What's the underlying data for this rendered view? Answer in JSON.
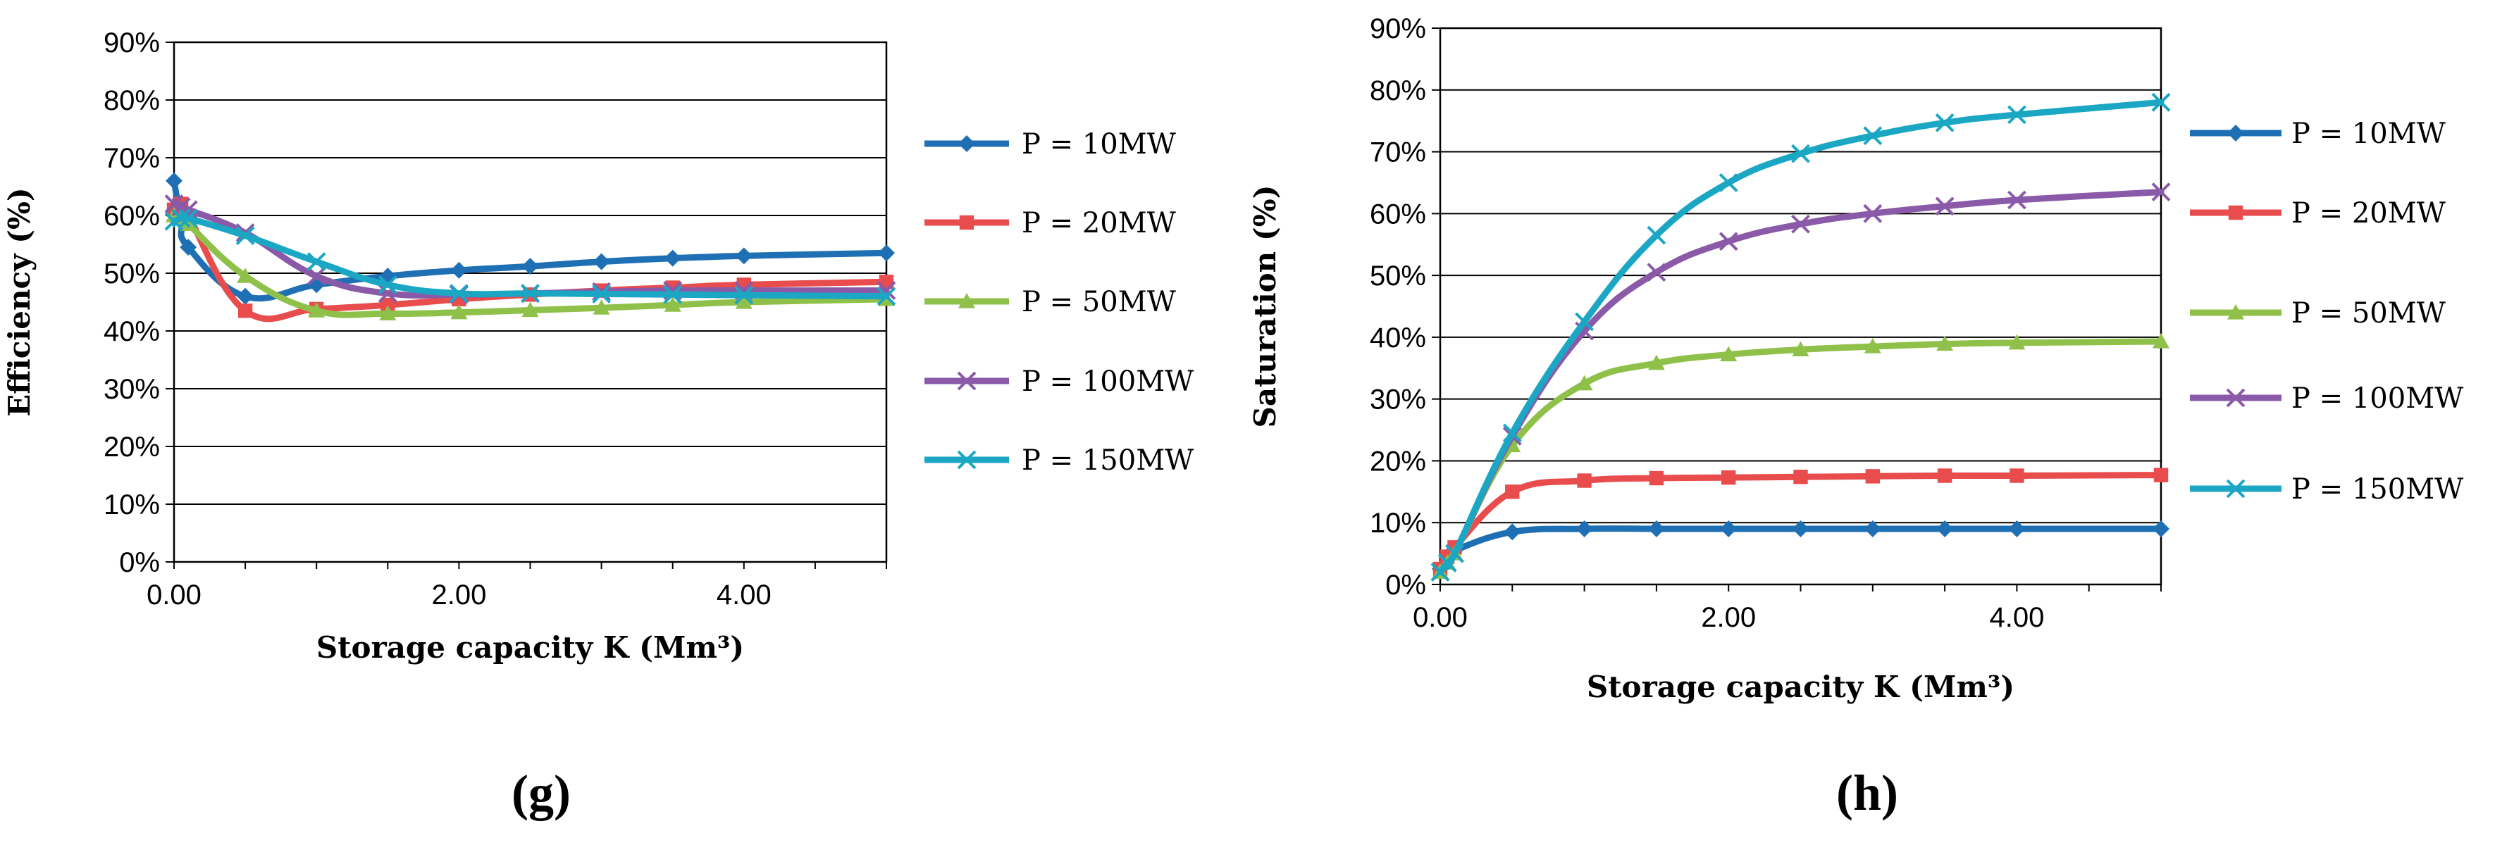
{
  "colors": {
    "P = 10MW": "#1f6fb5",
    "P = 20MW": "#e84c4c",
    "P = 50MW": "#8fc14a",
    "P = 100MW": "#8a5aa8",
    "P = 150MW": "#1ba7c4"
  },
  "markers": {
    "P = 10MW": "diamond",
    "P = 20MW": "square",
    "P = 50MW": "triangle",
    "P = 100MW": "x",
    "P = 150MW": "x"
  },
  "chart_data": [
    {
      "type": "line",
      "panel_label": "(g)",
      "title": "",
      "xlabel": "Storage capacity K (Mm³)",
      "ylabel": "Efficiency (%)",
      "xlim": [
        0,
        5
      ],
      "ylim": [
        0,
        90
      ],
      "xticks": [
        "0.00",
        "2.00",
        "4.00"
      ],
      "xtick_values": [
        0,
        2,
        4
      ],
      "yticks": [
        "0%",
        "10%",
        "20%",
        "30%",
        "40%",
        "50%",
        "60%",
        "70%",
        "80%",
        "90%"
      ],
      "grid": "horizontal",
      "legend": "right",
      "series": [
        {
          "name": "P = 10MW",
          "x": [
            0,
            0.05,
            0.1,
            0.5,
            1,
            1.5,
            2,
            2.5,
            3,
            3.5,
            4,
            5
          ],
          "y": [
            66,
            59,
            54.5,
            46,
            48,
            49.5,
            50.5,
            51.2,
            52,
            52.6,
            53,
            53.5
          ]
        },
        {
          "name": "P = 20MW",
          "x": [
            0,
            0.05,
            0.1,
            0.5,
            1,
            1.5,
            2,
            2.5,
            3,
            3.5,
            4,
            5
          ],
          "y": [
            61,
            62,
            60,
            43.5,
            43.8,
            44.5,
            45.5,
            46.3,
            47,
            47.5,
            48,
            48.5
          ]
        },
        {
          "name": "P = 50MW",
          "x": [
            0,
            0.05,
            0.1,
            0.5,
            1,
            1.5,
            2,
            2.5,
            3,
            3.5,
            4,
            5
          ],
          "y": [
            60,
            59.5,
            58.5,
            49.5,
            43.5,
            43,
            43.2,
            43.6,
            44,
            44.5,
            45,
            45.5
          ]
        },
        {
          "name": "P = 100MW",
          "x": [
            0,
            0.05,
            0.1,
            0.5,
            1,
            1.5,
            2,
            2.5,
            3,
            3.5,
            4,
            5
          ],
          "y": [
            62,
            61.5,
            61,
            57,
            49.5,
            46.5,
            46.3,
            46.5,
            46.8,
            47,
            47,
            47
          ]
        },
        {
          "name": "P = 150MW",
          "x": [
            0,
            0.05,
            0.1,
            0.5,
            1,
            1.5,
            2,
            2.5,
            3,
            3.5,
            4,
            5
          ],
          "y": [
            59,
            59.5,
            59.5,
            56.5,
            52,
            48,
            46.5,
            46.5,
            46.4,
            46.3,
            46.2,
            46
          ]
        }
      ]
    },
    {
      "type": "line",
      "panel_label": "(h)",
      "title": "",
      "xlabel": "Storage capacity K (Mm³)",
      "ylabel": "Saturation (%)",
      "xlim": [
        0,
        5
      ],
      "ylim": [
        0,
        90
      ],
      "xticks": [
        "0.00",
        "2.00",
        "4.00"
      ],
      "xtick_values": [
        0,
        2,
        4
      ],
      "yticks": [
        "0%",
        "10%",
        "20%",
        "30%",
        "40%",
        "50%",
        "60%",
        "70%",
        "80%",
        "90%"
      ],
      "grid": "horizontal",
      "legend": "right",
      "series": [
        {
          "name": "P = 10MW",
          "x": [
            0,
            0.05,
            0.1,
            0.5,
            1,
            1.5,
            2,
            2.5,
            3,
            3.5,
            4,
            5
          ],
          "y": [
            2.5,
            4.5,
            5.5,
            8.5,
            9,
            9,
            9,
            9,
            9,
            9,
            9,
            9
          ]
        },
        {
          "name": "P = 20MW",
          "x": [
            0,
            0.05,
            0.1,
            0.5,
            1,
            1.5,
            2,
            2.5,
            3,
            3.5,
            4,
            5
          ],
          "y": [
            2.5,
            4.5,
            6,
            15,
            16.8,
            17.2,
            17.3,
            17.4,
            17.5,
            17.6,
            17.6,
            17.7
          ]
        },
        {
          "name": "P = 50MW",
          "x": [
            0,
            0.05,
            0.1,
            0.5,
            1,
            1.5,
            2,
            2.5,
            3,
            3.5,
            4,
            5
          ],
          "y": [
            2,
            3.5,
            5,
            22.5,
            32.5,
            35.8,
            37.2,
            38,
            38.5,
            38.9,
            39.1,
            39.3
          ]
        },
        {
          "name": "P = 100MW",
          "x": [
            0,
            0.05,
            0.1,
            0.5,
            1,
            1.5,
            2,
            2.5,
            3,
            3.5,
            4,
            5
          ],
          "y": [
            2,
            3.5,
            5,
            24,
            41,
            50.5,
            55.5,
            58.3,
            60,
            61.2,
            62.2,
            63.5
          ]
        },
        {
          "name": "P = 150MW",
          "x": [
            0,
            0.05,
            0.1,
            0.5,
            1,
            1.5,
            2,
            2.5,
            3,
            3.5,
            4,
            5
          ],
          "y": [
            2,
            3.5,
            5,
            24.5,
            42.5,
            56.5,
            65,
            69.7,
            72.6,
            74.7,
            76,
            78
          ]
        }
      ]
    }
  ]
}
